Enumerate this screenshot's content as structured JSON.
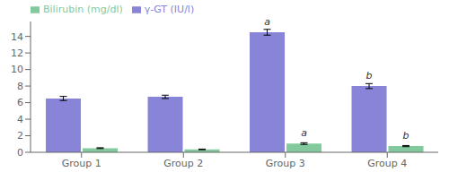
{
  "chart_data": {
    "type": "bar",
    "categories": [
      "Group 1",
      "Group 2",
      "Group 3",
      "Group 4"
    ],
    "series": [
      {
        "name": "γ-GT (IU/l)",
        "color": "#8884d8",
        "values": [
          6.5,
          6.7,
          14.5,
          8.0
        ],
        "errors": [
          0.25,
          0.2,
          0.35,
          0.3
        ],
        "annotations": [
          null,
          null,
          "a",
          "b"
        ]
      },
      {
        "name": "Bilirubin (mg/dl)",
        "color": "#82ca9d",
        "values": [
          0.5,
          0.35,
          1.05,
          0.75
        ],
        "errors": [
          0.05,
          0.04,
          0.1,
          0.07
        ],
        "annotations": [
          null,
          null,
          "a",
          "b"
        ]
      }
    ],
    "ylim": [
      0,
      15.8
    ],
    "yticks": [
      0,
      2,
      4,
      6,
      8,
      10,
      12,
      14
    ],
    "grid": false,
    "legend": "upper left"
  }
}
